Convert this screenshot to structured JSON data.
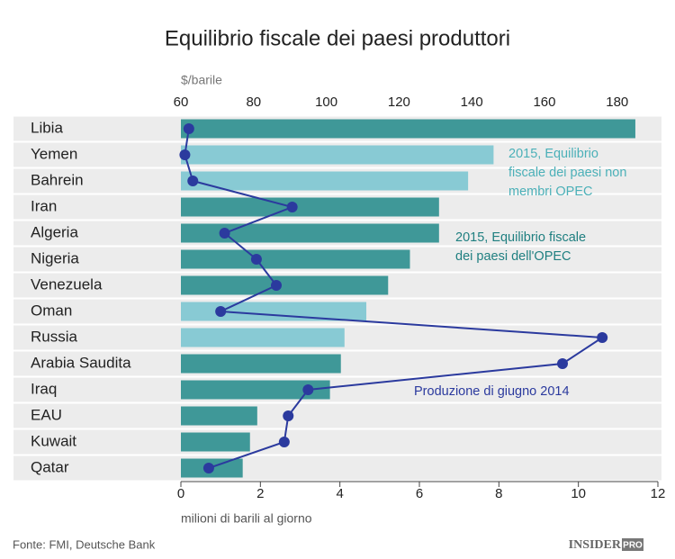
{
  "chart_data": {
    "type": "bar",
    "title": "Equilibrio fiscale dei paesi produttori",
    "categories": [
      "Libia",
      "Yemen",
      "Bahrein",
      "Iran",
      "Algeria",
      "Nigeria",
      "Venezuela",
      "Oman",
      "Russia",
      "Arabia Saudita",
      "Iraq",
      "EAU",
      "Kuwait",
      "Qatar"
    ],
    "series": [
      {
        "name": "2015, Equilibrio fiscale dei paesi non membri OPEC",
        "color": "#88cad4",
        "axis": "x2",
        "values": [
          null,
          146,
          139,
          null,
          null,
          null,
          null,
          111,
          105,
          null,
          null,
          null,
          null,
          null
        ]
      },
      {
        "name": "2015, Equilibrio fiscale dei paesi dell'OPEC",
        "color": "#3f9898",
        "axis": "x2",
        "values": [
          185,
          null,
          null,
          131,
          131,
          123,
          117,
          null,
          null,
          104,
          101,
          81,
          79,
          77
        ]
      },
      {
        "name": "Produzione di giugno 2014",
        "color": "#2b3a9e",
        "type": "line",
        "values": [
          0.2,
          0.1,
          0.3,
          2.8,
          1.1,
          1.9,
          2.4,
          1.0,
          10.6,
          9.6,
          3.2,
          2.7,
          2.6,
          0.7
        ]
      }
    ],
    "xlim": [
      0,
      12
    ],
    "xticks": [
      0,
      2,
      4,
      6,
      8,
      10,
      12
    ],
    "xlabel": "milioni di barili al giorno",
    "x2lim": [
      60,
      191.2
    ],
    "x2ticks": [
      60,
      80,
      100,
      120,
      140,
      160,
      180
    ],
    "x2label": "$/barile",
    "source": "Fonte: FMI, Deutsche Bank",
    "brand": "INSIDER",
    "brand_tag": "PRO"
  }
}
